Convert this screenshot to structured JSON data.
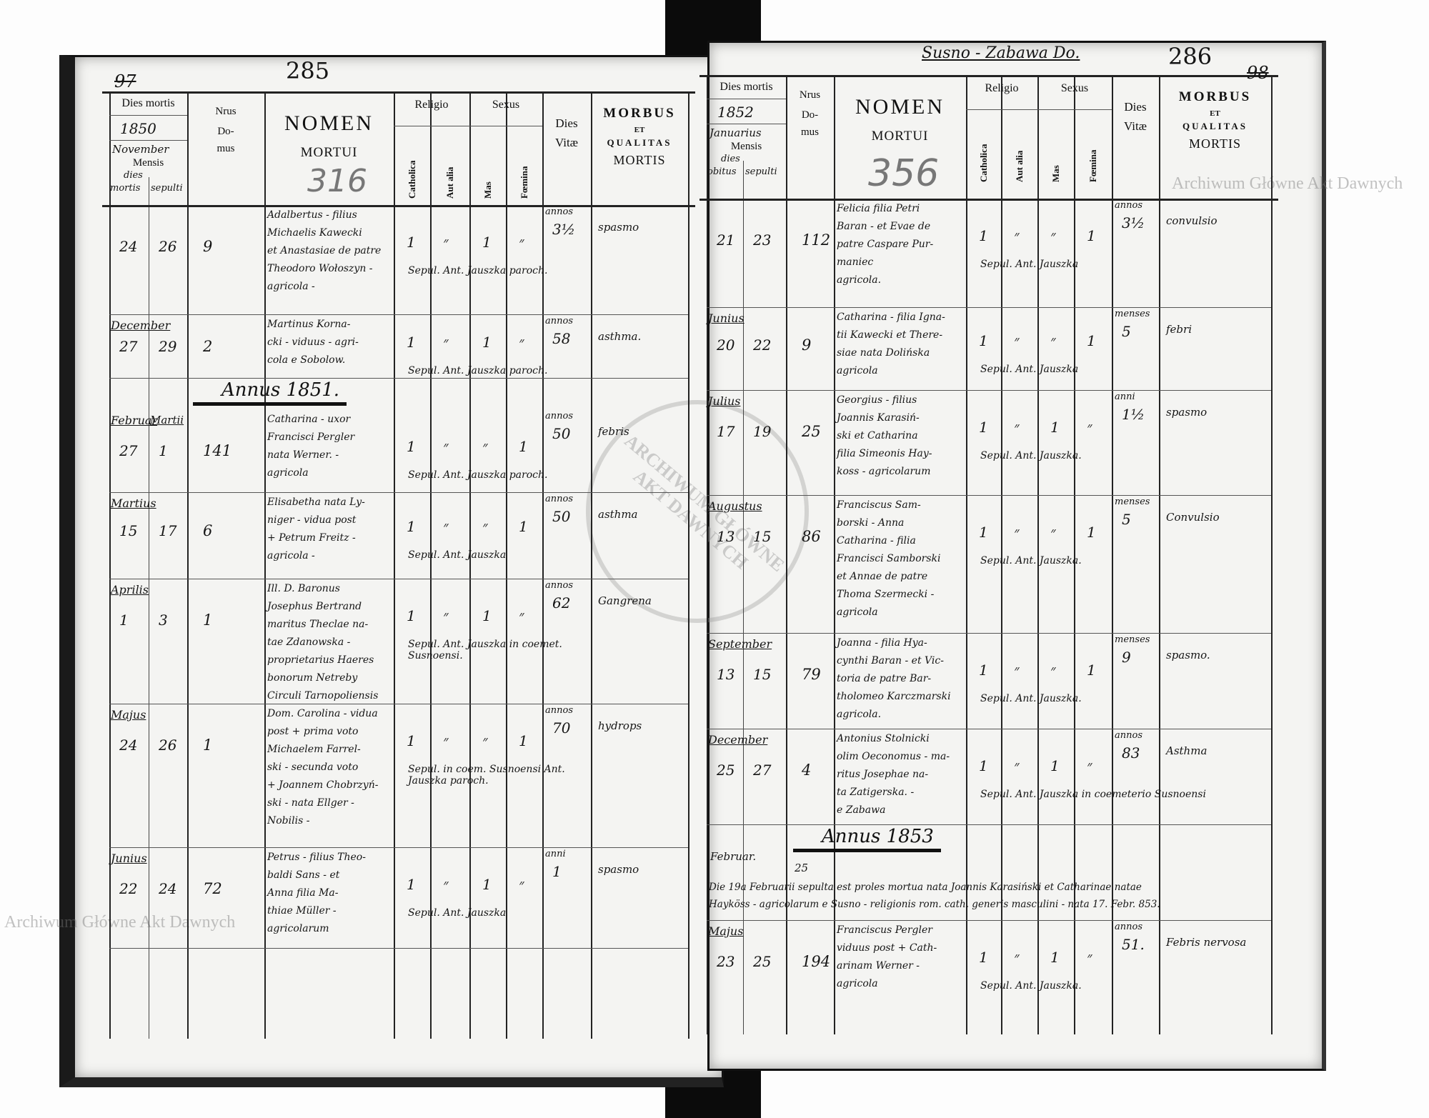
{
  "watermark": {
    "text": "Archiwum Główne Akt Dawnych",
    "stamp_text": "ARCHIWUM GŁÓWNE AKT DAWNYCH"
  },
  "headers": {
    "dies_mortis": "Dies mortis",
    "mensis": "Mensis",
    "nrus": "Nrus",
    "domus_1": "Do-",
    "domus_2": "mus",
    "nomen": "NOMEN",
    "mortui": "MORTUI",
    "religio": "Religio",
    "catholica": "Catholica",
    "aut_alia": "Aut alia",
    "sexus": "Sexus",
    "mas": "Mas",
    "foemina": "Fœmina",
    "dies": "Dies",
    "vitae": "Vitæ",
    "morbus": "MORBUS",
    "et": "ET",
    "qualitas": "QUALITAS",
    "mortis": "MORTIS"
  },
  "left_page": {
    "page_number": "285",
    "old_number": "97",
    "pencil_number": "316",
    "year": "1850",
    "month": "November",
    "dies_label": "dies",
    "mortis_label": "mortis",
    "sepulti_label": "sepulti",
    "year_headings": [
      "Annus 1851."
    ],
    "rows": [
      {
        "month": "",
        "mortis": "24",
        "sepulti": "26",
        "domus": "9",
        "nomen": [
          "Adalbertus - filius",
          "Michaelis Kawecki",
          "et Anastasiae de patre",
          "Theodoro Wołoszyn -",
          "agricola -"
        ],
        "catholica": "1",
        "aut_alia": "״",
        "mas": "1",
        "foemina": "״",
        "vitae_unit": "annos",
        "vitae": "3½",
        "morbus": "spasmo",
        "note": "Sepul. Ant. Jauszka paroch."
      },
      {
        "month": "December",
        "mortis": "27",
        "sepulti": "29",
        "domus": "2",
        "nomen": [
          "Martinus Korna-",
          "cki - viduus - agri-",
          "cola e Sobolow."
        ],
        "catholica": "1",
        "aut_alia": "״",
        "mas": "1",
        "foemina": "״",
        "vitae_unit": "annos",
        "vitae": "58",
        "morbus": "asthma.",
        "note": "Sepul. Ant. Jauszka paroch."
      },
      {
        "month": "Februar",
        "month2": "Martii",
        "mortis": "27",
        "sepulti": "1",
        "domus": "141",
        "nomen": [
          "Catharina - uxor",
          "Francisci Pergler",
          "nata Werner. -",
          "agricola"
        ],
        "catholica": "1",
        "aut_alia": "״",
        "mas": "״",
        "foemina": "1",
        "vitae_unit": "annos",
        "vitae": "50",
        "morbus": "febris",
        "note": "Sepul. Ant. Jauszka paroch."
      },
      {
        "month": "Martius",
        "mortis": "15",
        "sepulti": "17",
        "domus": "6",
        "nomen": [
          "Elisabetha nata Ly-",
          "niger - vidua post",
          "+ Petrum Freitz -",
          "agricola -"
        ],
        "catholica": "1",
        "aut_alia": "״",
        "mas": "״",
        "foemina": "1",
        "vitae_unit": "annos",
        "vitae": "50",
        "morbus": "asthma",
        "note": "Sepul. Ant. Jauszka"
      },
      {
        "month": "Aprilis",
        "mortis": "1",
        "sepulti": "3",
        "domus": "1",
        "nomen": [
          "Ill. D. Baronus",
          "Josephus Bertrand",
          "maritus Theclae na-",
          "tae Zdanowska -",
          "proprietarius Haeres",
          "bonorum Netreby",
          "Circuli Tarnopoliensis"
        ],
        "catholica": "1",
        "aut_alia": "״",
        "mas": "1",
        "foemina": "״",
        "vitae_unit": "annos",
        "vitae": "62",
        "morbus": "Gangrena",
        "note": "Sepul. Ant. Jauszka in coemet. Susnoensi."
      },
      {
        "month": "Majus",
        "mortis": "24",
        "sepulti": "26",
        "domus": "1",
        "nomen": [
          "Dom. Carolina - vidua",
          "post + prima voto",
          "Michaelem Farrel-",
          "ski - secunda voto",
          "+ Joannem Chobrzyń-",
          "ski - nata Ellger -",
          "Nobilis -"
        ],
        "catholica": "1",
        "aut_alia": "״",
        "mas": "״",
        "foemina": "1",
        "vitae_unit": "annos",
        "vitae": "70",
        "morbus": "hydrops",
        "note": "Sepul. in coem. Susnoensi Ant. Jauszka paroch."
      },
      {
        "month": "Junius",
        "mortis": "22",
        "sepulti": "24",
        "domus": "72",
        "nomen": [
          "Petrus - filius Theo-",
          "baldi Sans - et",
          "Anna filia Ma-",
          "thiae Müller -",
          "agricolarum"
        ],
        "catholica": "1",
        "aut_alia": "״",
        "mas": "1",
        "foemina": "״",
        "vitae_unit": "anni",
        "vitae": "1",
        "morbus": "spasmo",
        "note": "Sepul. Ant. Jauszka"
      },
      {
        "month": "",
        "mortis": "",
        "sepulti": "",
        "domus": "",
        "nomen": [],
        "catholica": "",
        "aut_alia": "",
        "mas": "",
        "foemina": "",
        "vitae_unit": "",
        "vitae": "",
        "morbus": "",
        "note": ""
      }
    ]
  },
  "right_page": {
    "page_number": "286",
    "parish": "Susno - Zabawa Do.",
    "old_number": "98",
    "pencil_number": "356",
    "year": "1852",
    "month": "Januarius",
    "dies_label": "dies",
    "mortis_label": "obitus",
    "sepulti_label": "sepulti",
    "year_headings": [
      "Annus 1853"
    ],
    "special_entry": {
      "month": "Februar.",
      "day": "25",
      "lines": [
        "Die 19a Februarii sepulta est proles mortua nata Joannis Karasiński et Catharinae natae",
        "Hayköss - agricolarum e Susno - religionis rom. cath. generis masculini - nata 17. Febr. 853."
      ]
    },
    "rows": [
      {
        "month": "",
        "mortis": "21",
        "sepulti": "23",
        "domus": "112",
        "nomen": [
          "Felicia filia Petri",
          "Baran - et Evae de",
          "patre Caspare Pur-",
          "maniec",
          "agricola."
        ],
        "catholica": "1",
        "aut_alia": "״",
        "mas": "״",
        "foemina": "1",
        "vitae_unit": "annos",
        "vitae": "3½",
        "morbus": "convulsio",
        "note": "Sepul. Ant. Jauszka"
      },
      {
        "month": "Junius",
        "mortis": "20",
        "sepulti": "22",
        "domus": "9",
        "nomen": [
          "Catharina - filia Igna-",
          "tii Kawecki et There-",
          "siae nata Dolińska",
          "agricola"
        ],
        "catholica": "1",
        "aut_alia": "״",
        "mas": "״",
        "foemina": "1",
        "vitae_unit": "menses",
        "vitae": "5",
        "morbus": "febri",
        "note": "Sepul. Ant. Jauszka"
      },
      {
        "month": "Julius",
        "mortis": "17",
        "sepulti": "19",
        "domus": "25",
        "nomen": [
          "Georgius - filius",
          "Joannis Karasiń-",
          "ski et Catharina",
          "filia Simeonis Hay-",
          "koss - agricolarum"
        ],
        "catholica": "1",
        "aut_alia": "״",
        "mas": "1",
        "foemina": "״",
        "vitae_unit": "anni",
        "vitae": "1½",
        "morbus": "spasmo",
        "note": "Sepul. Ant. Jauszka."
      },
      {
        "month": "Augustus",
        "mortis": "13",
        "sepulti": "15",
        "domus": "86",
        "nomen": [
          "Franciscus Sam-",
          "borski - Anna",
          "Catharina - filia",
          "Francisci Samborski",
          "et Annae de patre",
          "Thoma Szermecki -",
          "agricola"
        ],
        "catholica": "1",
        "aut_alia": "״",
        "mas": "״",
        "foemina": "1",
        "vitae_unit": "menses",
        "vitae": "5",
        "morbus": "Convulsio",
        "note": "Sepul. Ant. Jauszka."
      },
      {
        "month": "September",
        "mortis": "13",
        "sepulti": "15",
        "domus": "79",
        "nomen": [
          "Joanna - filia Hya-",
          "cynthi Baran - et Vic-",
          "toria de patre Bar-",
          "tholomeo Karczmarski",
          "agricola."
        ],
        "catholica": "1",
        "aut_alia": "״",
        "mas": "״",
        "foemina": "1",
        "vitae_unit": "menses",
        "vitae": "9",
        "morbus": "spasmo.",
        "note": "Sepul. Ant. Jauszka."
      },
      {
        "month": "December",
        "mortis": "25",
        "sepulti": "27",
        "domus": "4",
        "nomen": [
          "Antonius Stolnicki",
          "olim Oeconomus - ma-",
          "ritus Josephae na-",
          "ta Zatigerska. -",
          "e Zabawa"
        ],
        "catholica": "1",
        "aut_alia": "״",
        "mas": "1",
        "foemina": "״",
        "vitae_unit": "annos",
        "vitae": "83",
        "morbus": "Asthma",
        "note": "Sepul. Ant. Jauszka in coemeterio Susnoensi"
      },
      {
        "month": "",
        "mortis": "",
        "sepulti": "",
        "domus": "",
        "nomen": [],
        "catholica": "",
        "aut_alia": "",
        "mas": "",
        "foemina": "",
        "vitae_unit": "",
        "vitae": "",
        "morbus": "",
        "note": ""
      },
      {
        "month": "Majus",
        "mortis": "23",
        "sepulti": "25",
        "domus": "194",
        "nomen": [
          "Franciscus Pergler",
          "viduus post + Cath-",
          "arinam Werner -",
          "agricola"
        ],
        "catholica": "1",
        "aut_alia": "״",
        "mas": "1",
        "foemina": "״",
        "vitae_unit": "annos",
        "vitae": "51.",
        "morbus": "Febris nervosa",
        "note": "Sepul. Ant. Jauszka."
      }
    ]
  }
}
